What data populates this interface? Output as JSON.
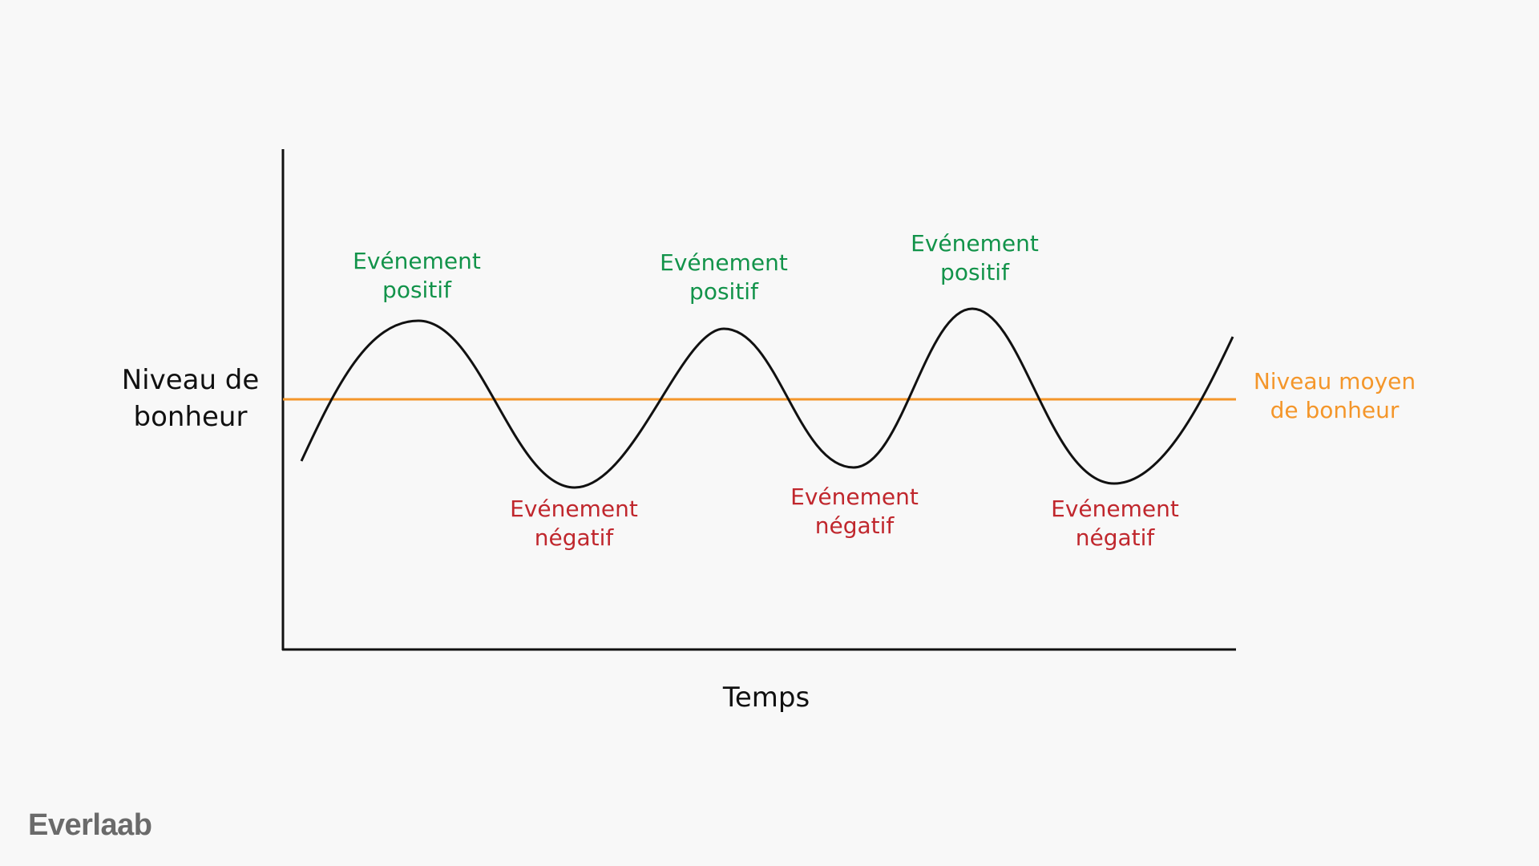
{
  "diagram": {
    "y_axis_label": [
      "Niveau de",
      "bonheur"
    ],
    "x_axis_label": "Temps",
    "average_line_label": [
      "Niveau moyen",
      "de bonheur"
    ],
    "events": [
      {
        "kind": "positive",
        "lines": [
          "Evénement",
          "positif"
        ]
      },
      {
        "kind": "negative",
        "lines": [
          "Evénement",
          "négatif"
        ]
      },
      {
        "kind": "positive",
        "lines": [
          "Evénement",
          "positif"
        ]
      },
      {
        "kind": "negative",
        "lines": [
          "Evénement",
          "négatif"
        ]
      },
      {
        "kind": "positive",
        "lines": [
          "Evénement",
          "positif"
        ]
      },
      {
        "kind": "negative",
        "lines": [
          "Evénement",
          "négatif"
        ]
      }
    ]
  },
  "brand": {
    "logo_text": "Everlaab"
  },
  "colors": {
    "background": "#f8f8f8",
    "positive": "#12934a",
    "negative": "#c0272d",
    "average_line": "#f4962a",
    "curve": "#111111",
    "logo": "#6a6a6a"
  }
}
